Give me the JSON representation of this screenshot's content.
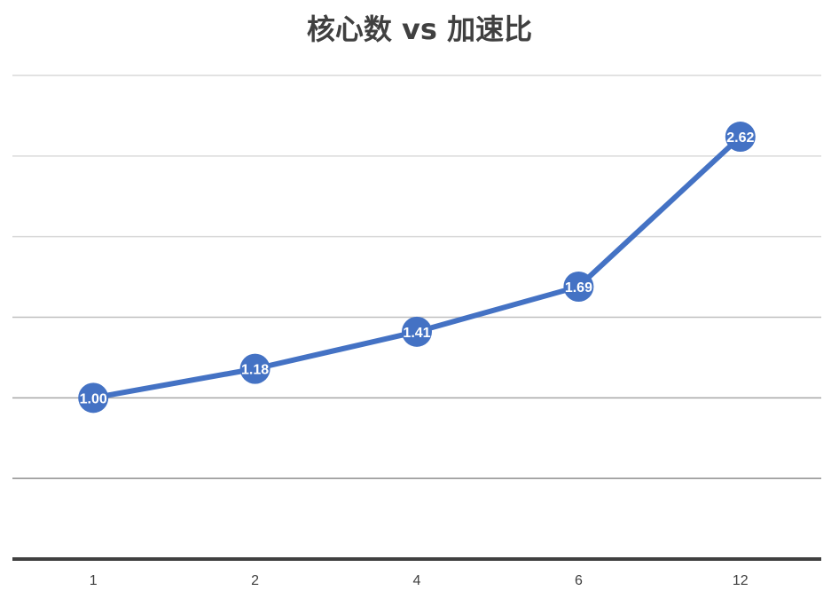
{
  "chart_data": {
    "type": "line",
    "title": "核心数 vs 加速比",
    "categories": [
      "1",
      "2",
      "4",
      "6",
      "12"
    ],
    "series": [
      {
        "values": [
          1.0,
          1.18,
          1.41,
          1.69,
          2.62
        ],
        "labels": [
          "1.00",
          "1.18",
          "1.41",
          "1.69",
          "2.62"
        ]
      }
    ],
    "ylim": [
      0.0,
      3.0
    ],
    "grid": true,
    "legend": "none",
    "xlabel": "",
    "ylabel": "",
    "colors": {
      "series": "#4472C4",
      "grid": "#d9d9d9",
      "axis": "#404040",
      "label_text": "#ffffff"
    }
  }
}
